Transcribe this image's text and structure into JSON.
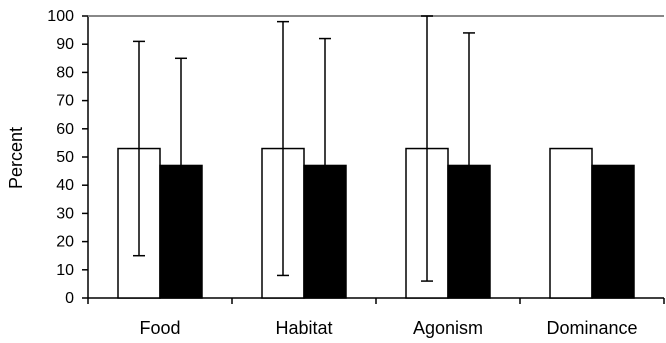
{
  "chart_data": {
    "type": "bar",
    "title": "",
    "xlabel": "",
    "ylabel": "Percent",
    "ylim": [
      0,
      100
    ],
    "yticks": [
      0,
      10,
      20,
      30,
      40,
      50,
      60,
      70,
      80,
      90,
      100
    ],
    "categories": [
      "Food",
      "Habitat",
      "Agonism",
      "Dominance"
    ],
    "grid": false,
    "legend": "none",
    "series": [
      {
        "values": [
          53,
          53,
          53,
          53
        ],
        "error_upper": [
          91,
          98,
          100,
          null
        ],
        "error_lower": [
          15,
          8,
          6,
          null
        ],
        "fill_color": "#ffffff",
        "edge_color": "#000000"
      },
      {
        "values": [
          47,
          47,
          47,
          47
        ],
        "error_upper": [
          85,
          92,
          94,
          null
        ],
        "error_lower": [
          null,
          null,
          null,
          null
        ],
        "fill_color": "#000000",
        "edge_color": "#000000"
      }
    ],
    "colors": {
      "axis": "#000000",
      "top_line": "#888888"
    }
  }
}
